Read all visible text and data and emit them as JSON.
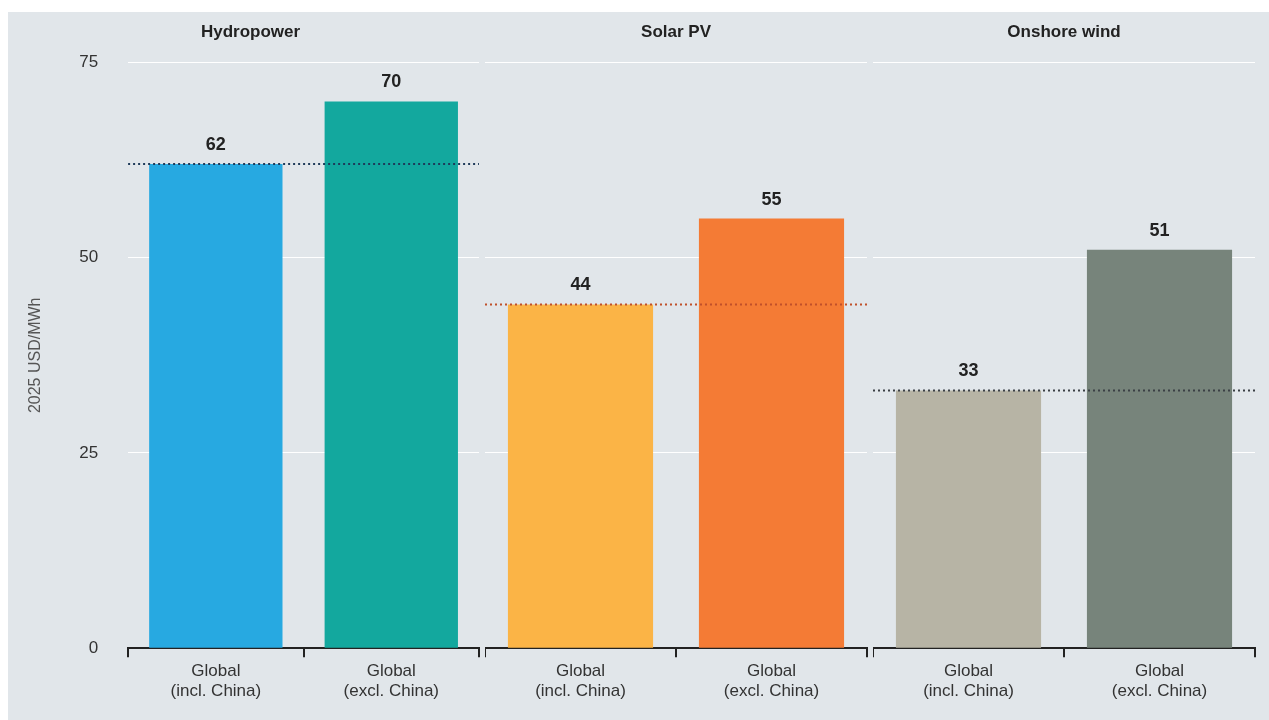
{
  "chart_data": [
    {
      "type": "bar",
      "title": "Hydropower",
      "ylabel": "2025 USD/MWh",
      "categories": [
        "Global\n(incl. China)",
        "Global\n(excl. China)"
      ],
      "values": [
        62,
        70
      ],
      "colors": [
        "#27a9e1",
        "#13a89e"
      ],
      "ylim": [
        0,
        75
      ],
      "yticks": [
        0,
        25,
        50,
        75
      ],
      "grid": "y",
      "data_labels": true,
      "ref_lines": [
        {
          "axis": "y",
          "value": 62,
          "color": "#1f3a5a",
          "line_style": "dotted"
        }
      ]
    },
    {
      "type": "bar",
      "title": "Solar PV",
      "categories": [
        "Global\n(incl. China)",
        "Global\n(excl. China)"
      ],
      "values": [
        44,
        55
      ],
      "colors": [
        "#fbb446",
        "#f47b35"
      ],
      "ylim": [
        0,
        75
      ],
      "yticks": [
        0,
        25,
        50,
        75
      ],
      "grid": "y",
      "data_labels": true,
      "tick_labels": "x",
      "ref_lines": [
        {
          "axis": "y",
          "value": 44,
          "color": "#c0502a",
          "line_style": "dotted"
        }
      ]
    },
    {
      "type": "bar",
      "title": "Onshore wind",
      "categories": [
        "Global\n(incl. China)",
        "Global\n(excl. China)"
      ],
      "values": [
        33,
        51
      ],
      "colors": [
        "#b7b4a5",
        "#77847b"
      ],
      "ylim": [
        0,
        75
      ],
      "yticks": [
        0,
        25,
        50,
        75
      ],
      "grid": "y",
      "data_labels": true,
      "tick_labels": "x",
      "ref_lines": [
        {
          "axis": "y",
          "value": 33,
          "color": "#3a3f44",
          "line_style": "dotted"
        }
      ]
    }
  ]
}
